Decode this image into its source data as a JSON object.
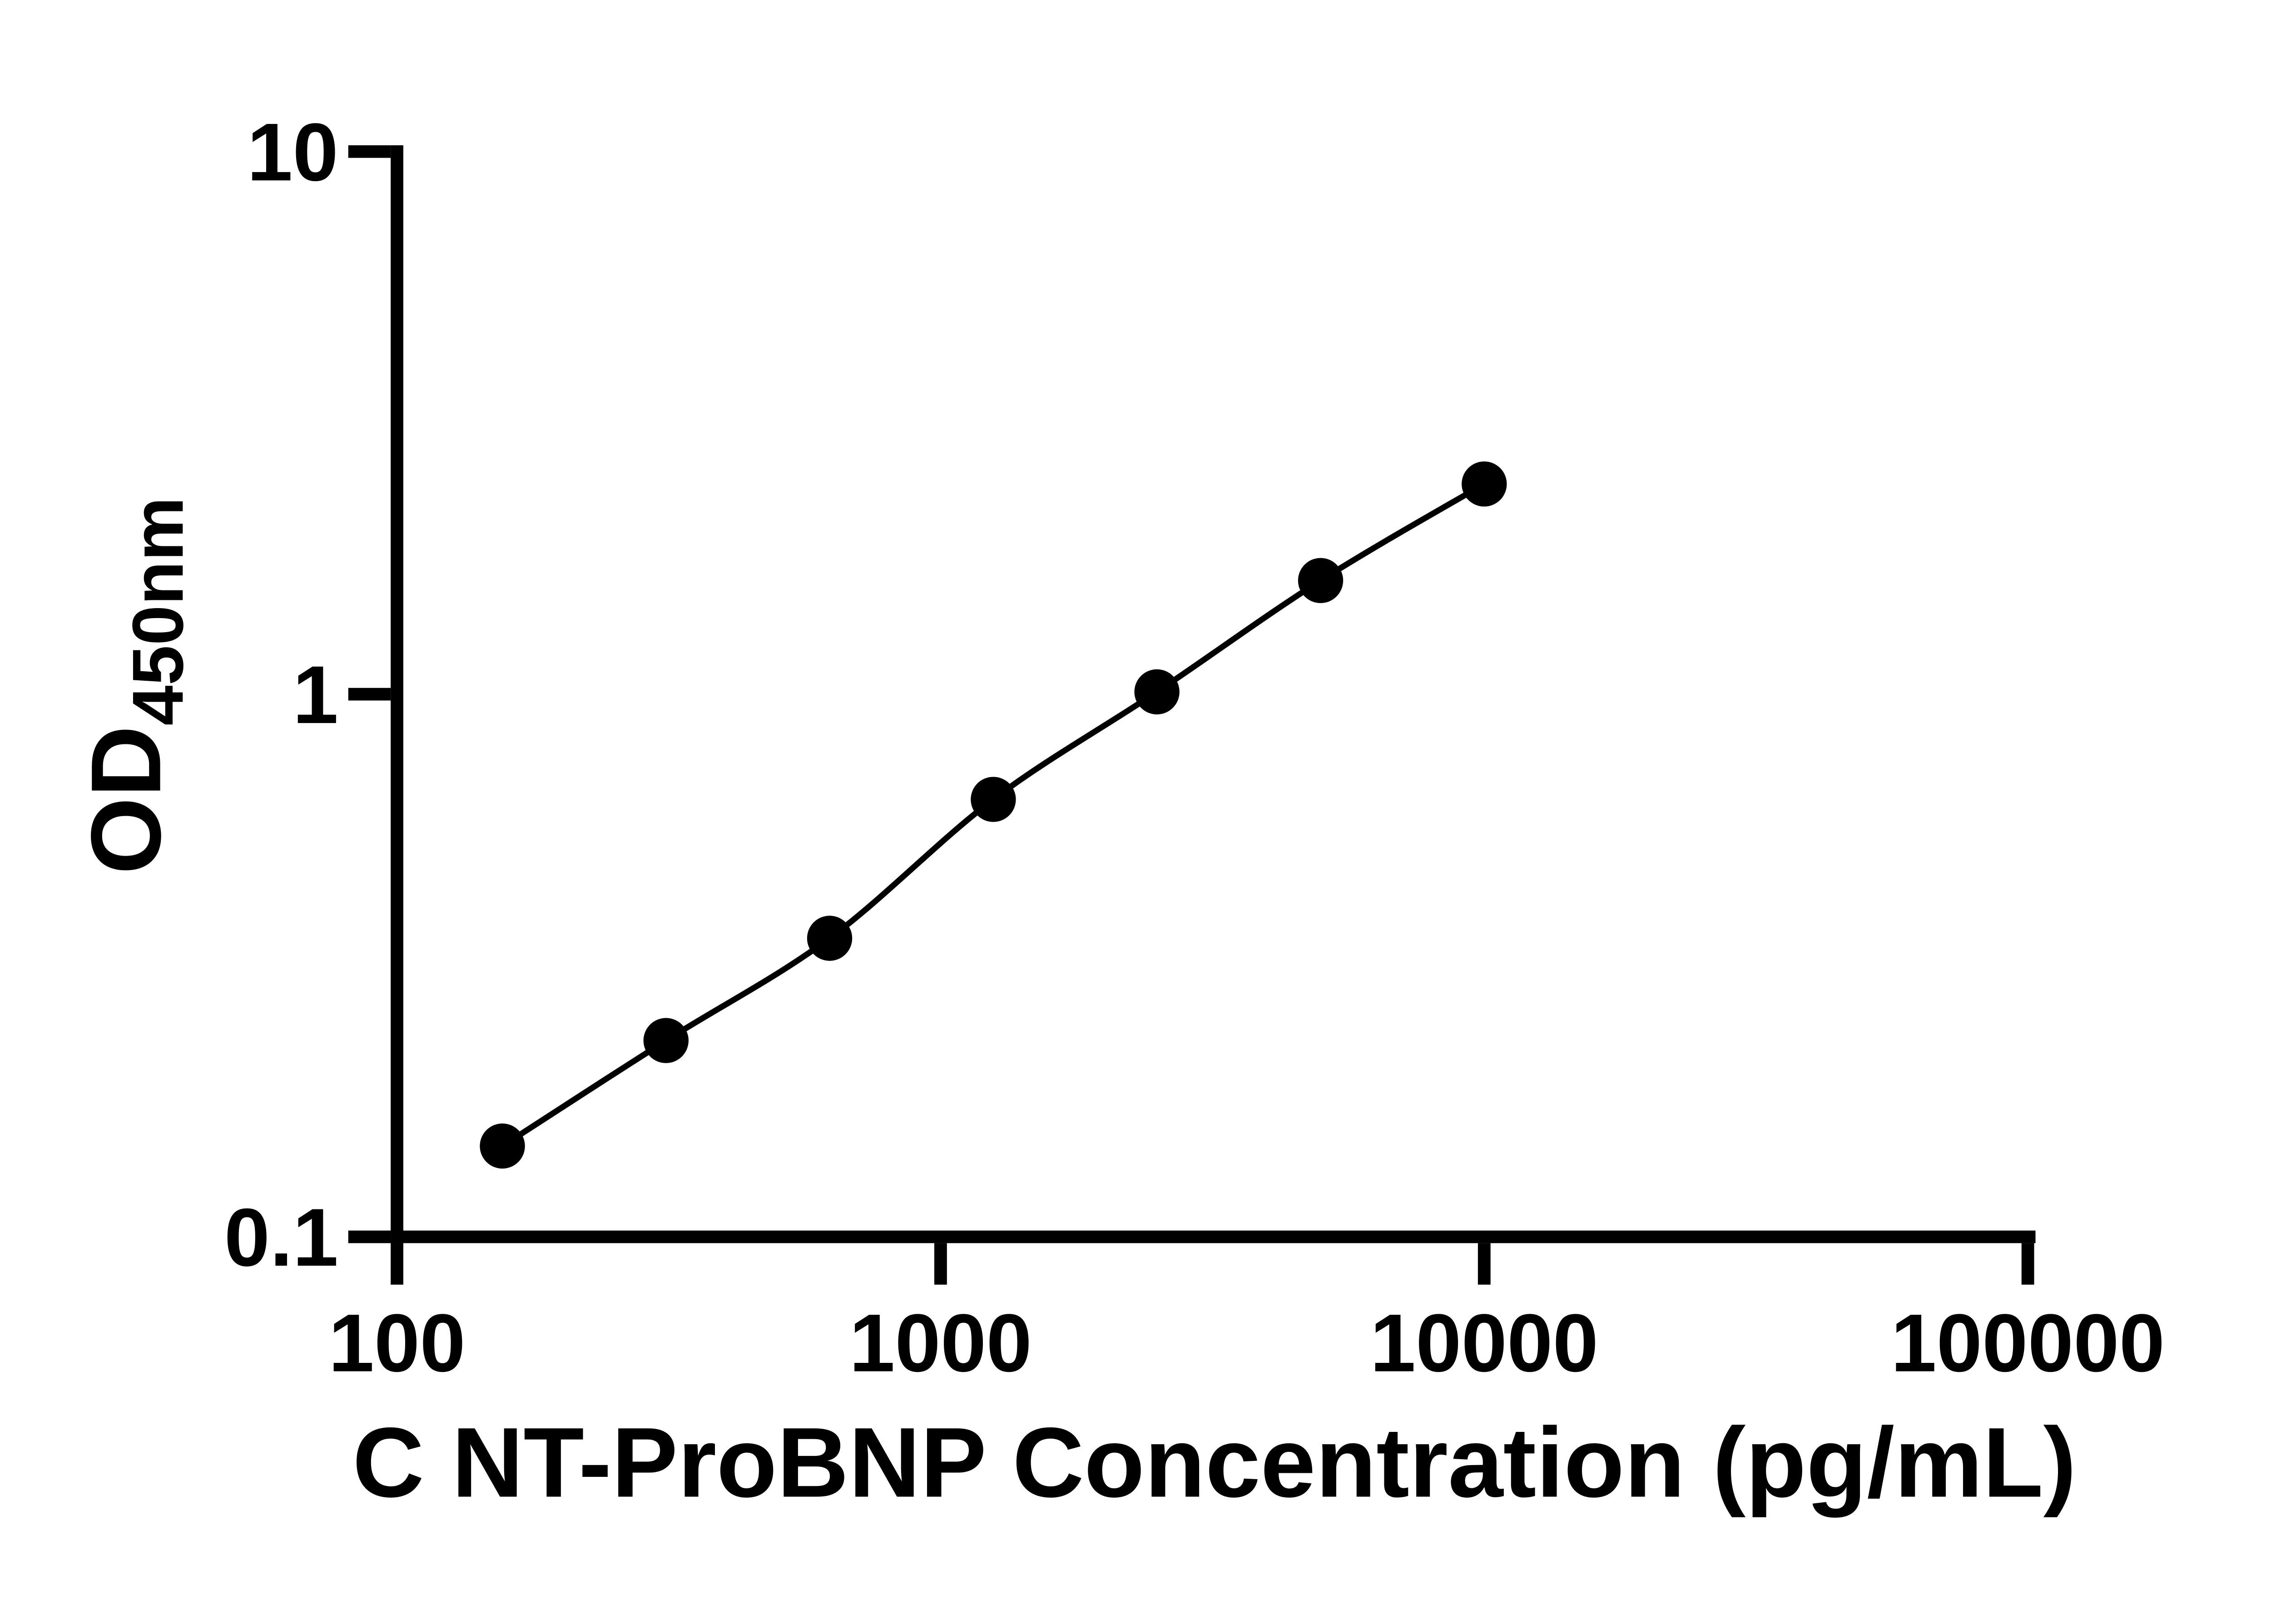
{
  "chart_data": {
    "type": "scatter",
    "title": "",
    "xlabel": "C NT-ProBNP Concentration (pg/mL)",
    "ylabel_main": "OD",
    "ylabel_sub": "450nm",
    "x_axis": {
      "scale": "log",
      "min": 100,
      "max": 100000,
      "ticks": [
        {
          "value": 100,
          "label": "100"
        },
        {
          "value": 1000,
          "label": "1000"
        },
        {
          "value": 10000,
          "label": "10000"
        },
        {
          "value": 100000,
          "label": "100000"
        }
      ]
    },
    "y_axis": {
      "scale": "log",
      "min": 0.1,
      "max": 10,
      "ticks": [
        {
          "value": 10,
          "label": "10"
        },
        {
          "value": 1,
          "label": "1"
        },
        {
          "value": 0.1,
          "label": "0.1"
        }
      ]
    },
    "series": [
      {
        "x": [
          156.25,
          312.5,
          625,
          1250,
          2500,
          5000,
          10000
        ],
        "y": [
          0.147,
          0.23,
          0.355,
          0.64,
          1.01,
          1.62,
          2.44
        ]
      }
    ],
    "legend": null,
    "grid": false,
    "colors": {
      "axis": "#000000",
      "points": "#000000",
      "line": "#000000",
      "background": "#ffffff"
    }
  }
}
